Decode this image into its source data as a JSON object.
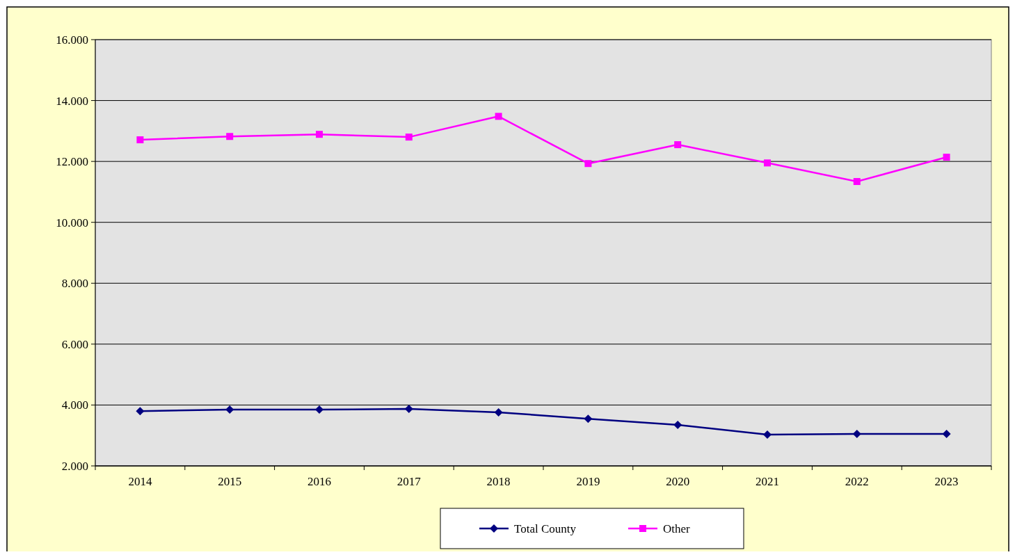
{
  "chart_data": {
    "type": "line",
    "categories": [
      "2014",
      "2015",
      "2016",
      "2017",
      "2018",
      "2019",
      "2020",
      "2021",
      "2022",
      "2023"
    ],
    "series": [
      {
        "name": "Total County",
        "color": "#000080",
        "marker": "diamond",
        "values": [
          3800,
          3850,
          3850,
          3870,
          3760,
          3550,
          3350,
          3030,
          3050,
          3050
        ]
      },
      {
        "name": "Other",
        "color": "#ff00ff",
        "marker": "square",
        "values": [
          12710,
          12820,
          12890,
          12800,
          13480,
          11930,
          12550,
          11950,
          11340,
          12140
        ]
      }
    ],
    "ylim": [
      2000,
      16000
    ],
    "yticks": [
      {
        "value": 2000,
        "label": "2.000"
      },
      {
        "value": 4000,
        "label": "4.000"
      },
      {
        "value": 6000,
        "label": "6.000"
      },
      {
        "value": 8000,
        "label": "8.000"
      },
      {
        "value": 10000,
        "label": "10.000"
      },
      {
        "value": 12000,
        "label": "12.000"
      },
      {
        "value": 14000,
        "label": "14.000"
      },
      {
        "value": 16000,
        "label": "16.000"
      }
    ],
    "grid": "y",
    "legend": "bottom",
    "line_style": "solid"
  }
}
